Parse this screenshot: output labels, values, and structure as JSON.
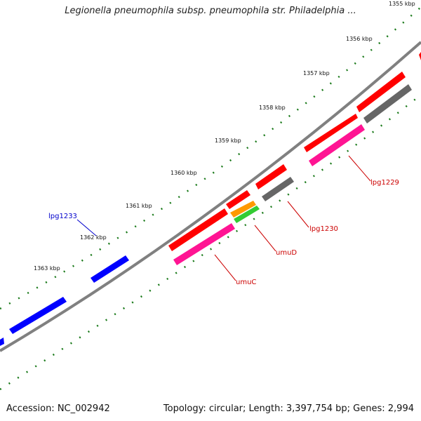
{
  "title": "Legionella pneumophila subsp. pneumophila str. Philadelphia ...",
  "footer": {
    "accession": "Accession: NC_002942",
    "topology": "Topology: circular; Length: 3,397,754 bp; Genes: 2,994"
  },
  "tick_labels": [
    "1355 kbp",
    "1356 kbp",
    "1357 kbp",
    "1358 kbp",
    "1359 kbp",
    "1360 kbp",
    "1361 kbp",
    "1362 kbp",
    "1363 kbp"
  ],
  "gene_labels": [
    {
      "name": "lpg1233",
      "color": "#0000cc"
    },
    {
      "name": "lpg1229",
      "color": "#cc0000"
    },
    {
      "name": "lpg1230",
      "color": "#cc0000"
    },
    {
      "name": "umuD",
      "color": "#cc0000"
    },
    {
      "name": "umuC",
      "color": "#cc0000"
    }
  ],
  "colors": {
    "forward_cds": "#ff0000",
    "reverse_cds": "#0000ff",
    "gray_feature": "#666666",
    "pink_feature": "#ff1493",
    "orange_feature": "#ff9900",
    "green_feature": "#33cc33",
    "backbone": "#808080",
    "tick_marks": "#1a7a1a"
  }
}
